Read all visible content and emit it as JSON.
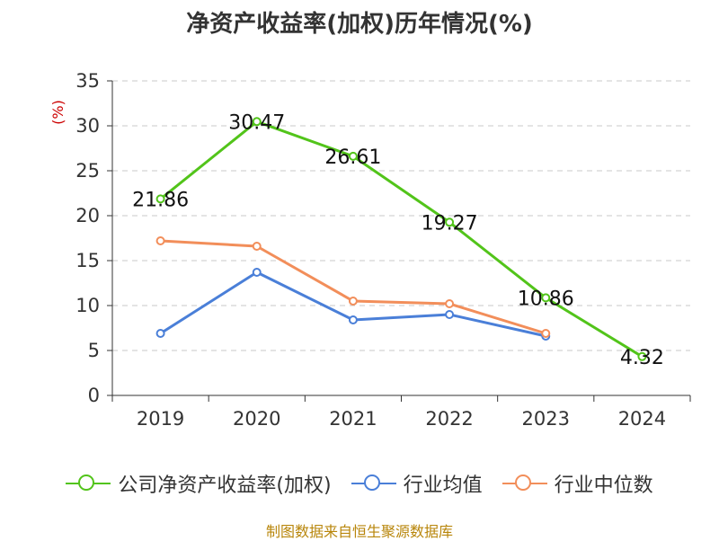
{
  "title": "净资产收益率(加权)历年情况(%)",
  "source": "制图数据来自恒生聚源数据库",
  "colors": {
    "company": "#52c41a",
    "industry_avg": "#4a7fd8",
    "industry_median": "#f28e5a",
    "unit_label": "#cc0000",
    "grid": "#c8c8c8",
    "axis": "#333333"
  },
  "legend": [
    {
      "label": "公司净资产收益率(加权)",
      "color_key": "company"
    },
    {
      "label": "行业均值",
      "color_key": "industry_avg"
    },
    {
      "label": "行业中位数",
      "color_key": "industry_median"
    }
  ],
  "chart_data": {
    "type": "line",
    "title": "净资产收益率(加权)历年情况(%)",
    "ylabel": "(%)",
    "xlabel": "",
    "categories": [
      "2019",
      "2020",
      "2021",
      "2022",
      "2023",
      "2024"
    ],
    "ylim": [
      0,
      35
    ],
    "yticks": [
      0,
      5,
      10,
      15,
      20,
      25,
      30,
      35
    ],
    "grid": true,
    "legend_position": "bottom",
    "series": [
      {
        "name": "公司净资产收益率(加权)",
        "values": [
          21.86,
          30.47,
          26.61,
          19.27,
          10.86,
          4.32
        ],
        "labels": [
          "21.86",
          "30.47",
          "26.61",
          "19.27",
          "10.86",
          "4.32"
        ],
        "color_key": "company"
      },
      {
        "name": "行业均值",
        "values": [
          6.9,
          13.7,
          8.4,
          9.0,
          6.6,
          null
        ],
        "color_key": "industry_avg"
      },
      {
        "name": "行业中位数",
        "values": [
          17.2,
          16.6,
          10.5,
          10.2,
          6.9,
          null
        ],
        "color_key": "industry_median"
      }
    ]
  }
}
